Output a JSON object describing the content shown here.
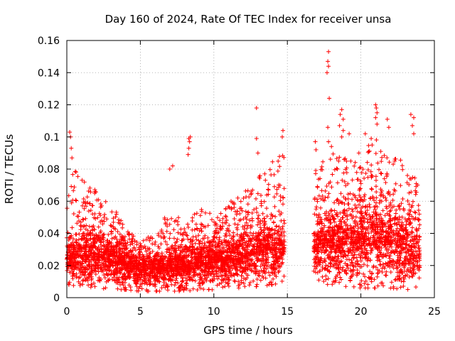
{
  "chart_data": {
    "type": "scatter",
    "title": "Day 160 of 2024, Rate Of TEC Index for receiver unsa",
    "xlabel": "GPS time / hours",
    "ylabel": "ROTI / TECUs",
    "xlim": [
      0,
      25
    ],
    "ylim": [
      0,
      0.16
    ],
    "x_ticks": [
      0,
      5,
      10,
      15,
      20,
      25
    ],
    "x_tick_labels": [
      "0",
      "5",
      "10",
      "15",
      "20",
      "25"
    ],
    "y_ticks": [
      0,
      0.02,
      0.04,
      0.06,
      0.08,
      0.1,
      0.12,
      0.14,
      0.16
    ],
    "y_tick_labels": [
      "0",
      "0.02",
      "0.04",
      "0.06",
      "0.08",
      "0.1",
      "0.12",
      "0.14",
      "0.16"
    ],
    "grid": true,
    "marker": "+",
    "marker_color": "#ff0000",
    "series": [
      {
        "name": "ROTI",
        "segments": [
          {
            "x_range": [
              0.0,
              14.8
            ],
            "envelope": [
              {
                "x": 0.0,
                "low": 0.008,
                "base": 0.022,
                "high": 0.06
              },
              {
                "x": 0.3,
                "low": 0.008,
                "base": 0.024,
                "high": 0.085
              },
              {
                "x": 1.0,
                "low": 0.006,
                "base": 0.026,
                "high": 0.075
              },
              {
                "x": 2.0,
                "low": 0.006,
                "base": 0.025,
                "high": 0.068
              },
              {
                "x": 3.0,
                "low": 0.005,
                "base": 0.022,
                "high": 0.058
              },
              {
                "x": 4.0,
                "low": 0.005,
                "base": 0.02,
                "high": 0.045
              },
              {
                "x": 5.0,
                "low": 0.004,
                "base": 0.017,
                "high": 0.035
              },
              {
                "x": 6.0,
                "low": 0.004,
                "base": 0.017,
                "high": 0.04
              },
              {
                "x": 7.0,
                "low": 0.004,
                "base": 0.018,
                "high": 0.055
              },
              {
                "x": 8.0,
                "low": 0.004,
                "base": 0.019,
                "high": 0.05
              },
              {
                "x": 9.0,
                "low": 0.005,
                "base": 0.021,
                "high": 0.055
              },
              {
                "x": 10.0,
                "low": 0.005,
                "base": 0.022,
                "high": 0.055
              },
              {
                "x": 11.0,
                "low": 0.006,
                "base": 0.023,
                "high": 0.06
              },
              {
                "x": 12.0,
                "low": 0.006,
                "base": 0.025,
                "high": 0.065
              },
              {
                "x": 13.0,
                "low": 0.007,
                "base": 0.028,
                "high": 0.075
              },
              {
                "x": 14.0,
                "low": 0.008,
                "base": 0.03,
                "high": 0.085
              },
              {
                "x": 14.8,
                "low": 0.01,
                "base": 0.03,
                "high": 0.095
              }
            ]
          },
          {
            "x_range": [
              16.8,
              24.0
            ],
            "envelope": [
              {
                "x": 16.8,
                "low": 0.008,
                "base": 0.03,
                "high": 0.08
              },
              {
                "x": 18.0,
                "low": 0.007,
                "base": 0.032,
                "high": 0.09
              },
              {
                "x": 19.0,
                "low": 0.007,
                "base": 0.033,
                "high": 0.095
              },
              {
                "x": 20.0,
                "low": 0.006,
                "base": 0.034,
                "high": 0.09
              },
              {
                "x": 21.0,
                "low": 0.006,
                "base": 0.035,
                "high": 0.1
              },
              {
                "x": 22.0,
                "low": 0.006,
                "base": 0.034,
                "high": 0.09
              },
              {
                "x": 23.0,
                "low": 0.005,
                "base": 0.03,
                "high": 0.085
              },
              {
                "x": 24.0,
                "low": 0.005,
                "base": 0.028,
                "high": 0.07
              }
            ]
          }
        ],
        "outliers": [
          [
            0.2,
            0.103
          ],
          [
            0.25,
            0.1
          ],
          [
            0.35,
            0.087
          ],
          [
            0.3,
            0.093
          ],
          [
            7.0,
            0.08
          ],
          [
            7.2,
            0.082
          ],
          [
            8.3,
            0.099
          ],
          [
            8.35,
            0.097
          ],
          [
            8.4,
            0.1
          ],
          [
            8.3,
            0.093
          ],
          [
            8.25,
            0.089
          ],
          [
            12.9,
            0.118
          ],
          [
            12.9,
            0.099
          ],
          [
            13.0,
            0.09
          ],
          [
            14.7,
            0.104
          ],
          [
            14.65,
            0.1
          ],
          [
            16.9,
            0.097
          ],
          [
            16.95,
            0.092
          ],
          [
            17.8,
            0.153
          ],
          [
            17.75,
            0.147
          ],
          [
            17.8,
            0.144
          ],
          [
            17.7,
            0.14
          ],
          [
            17.85,
            0.124
          ],
          [
            17.75,
            0.106
          ],
          [
            17.8,
            0.097
          ],
          [
            18.0,
            0.094
          ],
          [
            18.6,
            0.114
          ],
          [
            18.7,
            0.117
          ],
          [
            18.8,
            0.111
          ],
          [
            18.55,
            0.107
          ],
          [
            18.7,
            0.1
          ],
          [
            18.8,
            0.104
          ],
          [
            19.2,
            0.102
          ],
          [
            20.3,
            0.102
          ],
          [
            20.7,
            0.099
          ],
          [
            21.0,
            0.12
          ],
          [
            21.05,
            0.118
          ],
          [
            21.1,
            0.115
          ],
          [
            21.0,
            0.112
          ],
          [
            21.1,
            0.108
          ],
          [
            21.8,
            0.111
          ],
          [
            21.9,
            0.106
          ],
          [
            23.4,
            0.114
          ],
          [
            23.6,
            0.112
          ],
          [
            23.5,
            0.107
          ],
          [
            23.6,
            0.102
          ]
        ]
      }
    ]
  }
}
